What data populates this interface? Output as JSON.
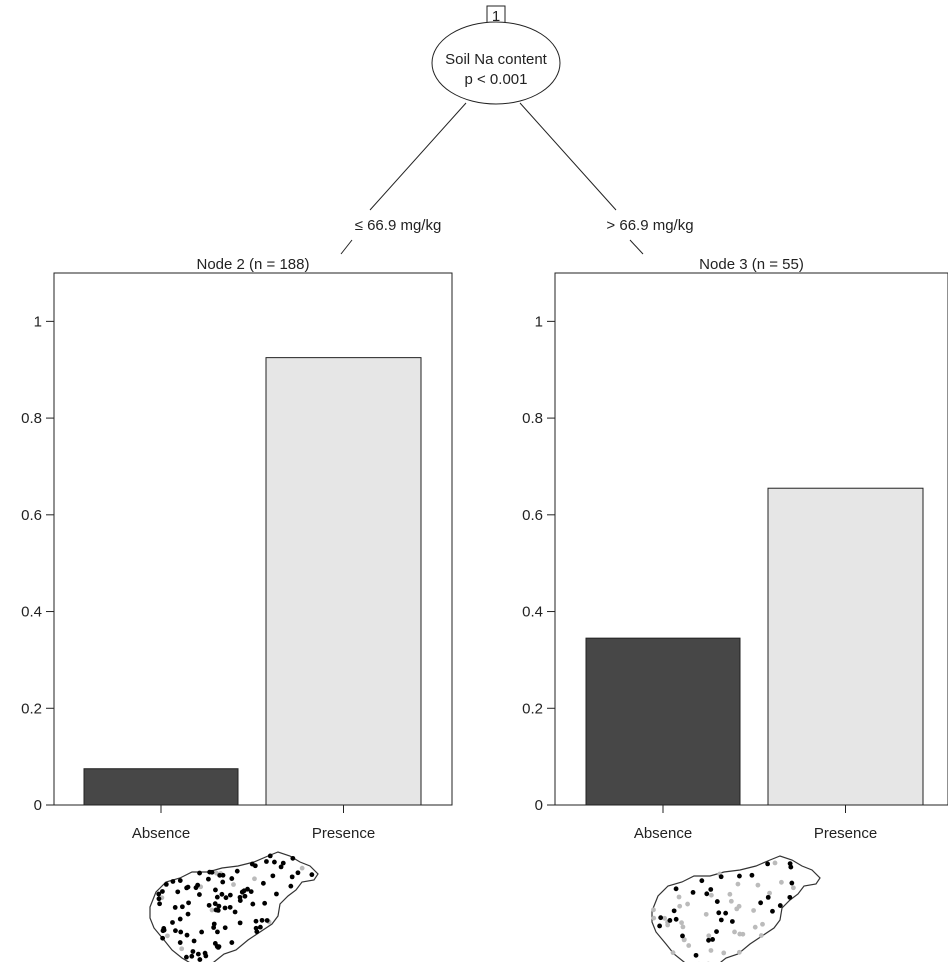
{
  "root_node": {
    "id": "1",
    "variable": "Soil Na content",
    "p_value": "p < 0.001"
  },
  "splits": {
    "left": "≤ 66.9 mg/kg",
    "right": "> 66.9 mg/kg"
  },
  "colors": {
    "absence": "#474747",
    "presence": "#e6e6e6",
    "map_presence_point": "#bbbbbb",
    "map_absence_point": "#000000"
  },
  "chart_data": [
    {
      "type": "bar",
      "title": "Node 2 (n = 188)",
      "categories": [
        "Absence",
        "Presence"
      ],
      "values": [
        0.075,
        0.925
      ],
      "ylim": [
        0,
        1.1
      ],
      "yticks": [
        "0",
        "0.2",
        "0.4",
        "0.6",
        "0.8",
        "1"
      ]
    },
    {
      "type": "bar",
      "title": "Node 3 (n = 55)",
      "categories": [
        "Absence",
        "Presence"
      ],
      "values": [
        0.345,
        0.655
      ],
      "ylim": [
        0,
        1.1
      ],
      "yticks": [
        "0",
        "0.2",
        "0.4",
        "0.6",
        "0.8",
        "1"
      ]
    }
  ],
  "maps": [
    {
      "icon": "hungary-map-icon",
      "presence_points": 12,
      "absence_points": 100
    },
    {
      "icon": "hungary-map-icon",
      "presence_points": 40,
      "absence_points": 32
    }
  ]
}
